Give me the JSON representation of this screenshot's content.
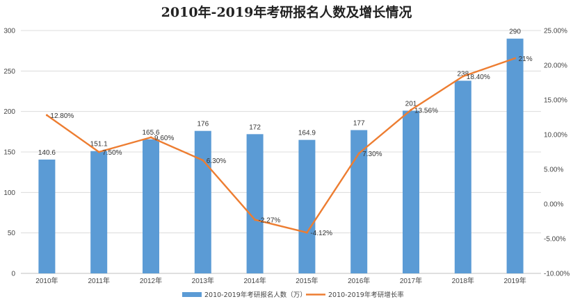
{
  "chart_data": {
    "type": "bar",
    "title": "2010年-2019年考研报名人数及增长情况",
    "categories": [
      "2010年",
      "2011年",
      "2012年",
      "2013年",
      "2014年",
      "2015年",
      "2016年",
      "2017年",
      "2018年",
      "2019年"
    ],
    "series": [
      {
        "name": "2010-2019年考研报名人数（万）",
        "type": "bar",
        "axis": "left",
        "color": "#5b9bd5",
        "values": [
          140.6,
          151.1,
          165.6,
          176,
          172,
          164.9,
          177,
          201,
          238,
          290
        ],
        "labels": [
          "140.6",
          "151.1",
          "165.6",
          "176",
          "172",
          "164.9",
          "177",
          "201",
          "238",
          "290"
        ]
      },
      {
        "name": "2010-2019年考研增长率",
        "type": "line",
        "axis": "right",
        "color": "#ed7d31",
        "values": [
          12.8,
          7.5,
          9.6,
          6.3,
          -2.27,
          -4.12,
          7.3,
          13.56,
          18.4,
          21
        ],
        "labels": [
          "12.80%",
          "7.50%",
          "9.60%",
          "6.30%",
          "-2.27%",
          "-4.12%",
          "7.30%",
          "13.56%",
          "18.40%",
          "21%"
        ]
      }
    ],
    "y_left": {
      "min": 0,
      "max": 300,
      "ticks": [
        "0",
        "50",
        "100",
        "150",
        "200",
        "250",
        "300"
      ]
    },
    "y_right": {
      "min": -10,
      "max": 25,
      "ticks": [
        "-10.00%",
        "-5.00%",
        "0.00%",
        "5.00%",
        "10.00%",
        "15.00%",
        "20.00%",
        "25.00%"
      ]
    },
    "grid": true,
    "legend_position": "bottom"
  }
}
